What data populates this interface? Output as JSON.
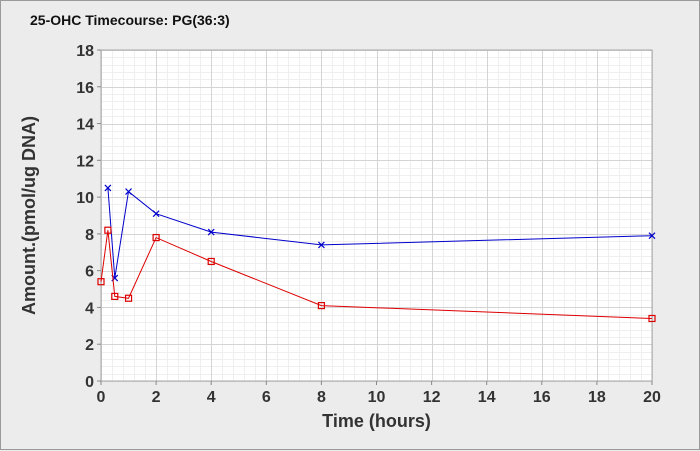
{
  "chart_data": {
    "type": "line",
    "title": "25-OHC Timecourse: PG(36:3)",
    "xlabel": "Time (hours)",
    "ylabel": "Amount.(pmol/ug DNA)",
    "xlim": [
      0,
      20
    ],
    "ylim": [
      0,
      18
    ],
    "xticks": [
      0,
      2,
      4,
      6,
      8,
      10,
      12,
      14,
      16,
      18,
      20
    ],
    "yticks": [
      0,
      2,
      4,
      6,
      8,
      10,
      12,
      14,
      16,
      18
    ],
    "grid": true,
    "legend": "none",
    "series": [
      {
        "color": "#0000cc",
        "marker": "x",
        "x": [
          0.25,
          0.5,
          1,
          2,
          4,
          8,
          20
        ],
        "y": [
          10.5,
          5.6,
          10.3,
          9.1,
          8.1,
          7.4,
          7.9
        ]
      },
      {
        "color": "#dd0000",
        "marker": "square",
        "x": [
          0,
          0.25,
          0.5,
          1,
          2,
          4,
          8,
          20
        ],
        "y": [
          5.4,
          8.2,
          4.6,
          4.5,
          7.8,
          6.5,
          4.1,
          3.4
        ]
      }
    ]
  }
}
